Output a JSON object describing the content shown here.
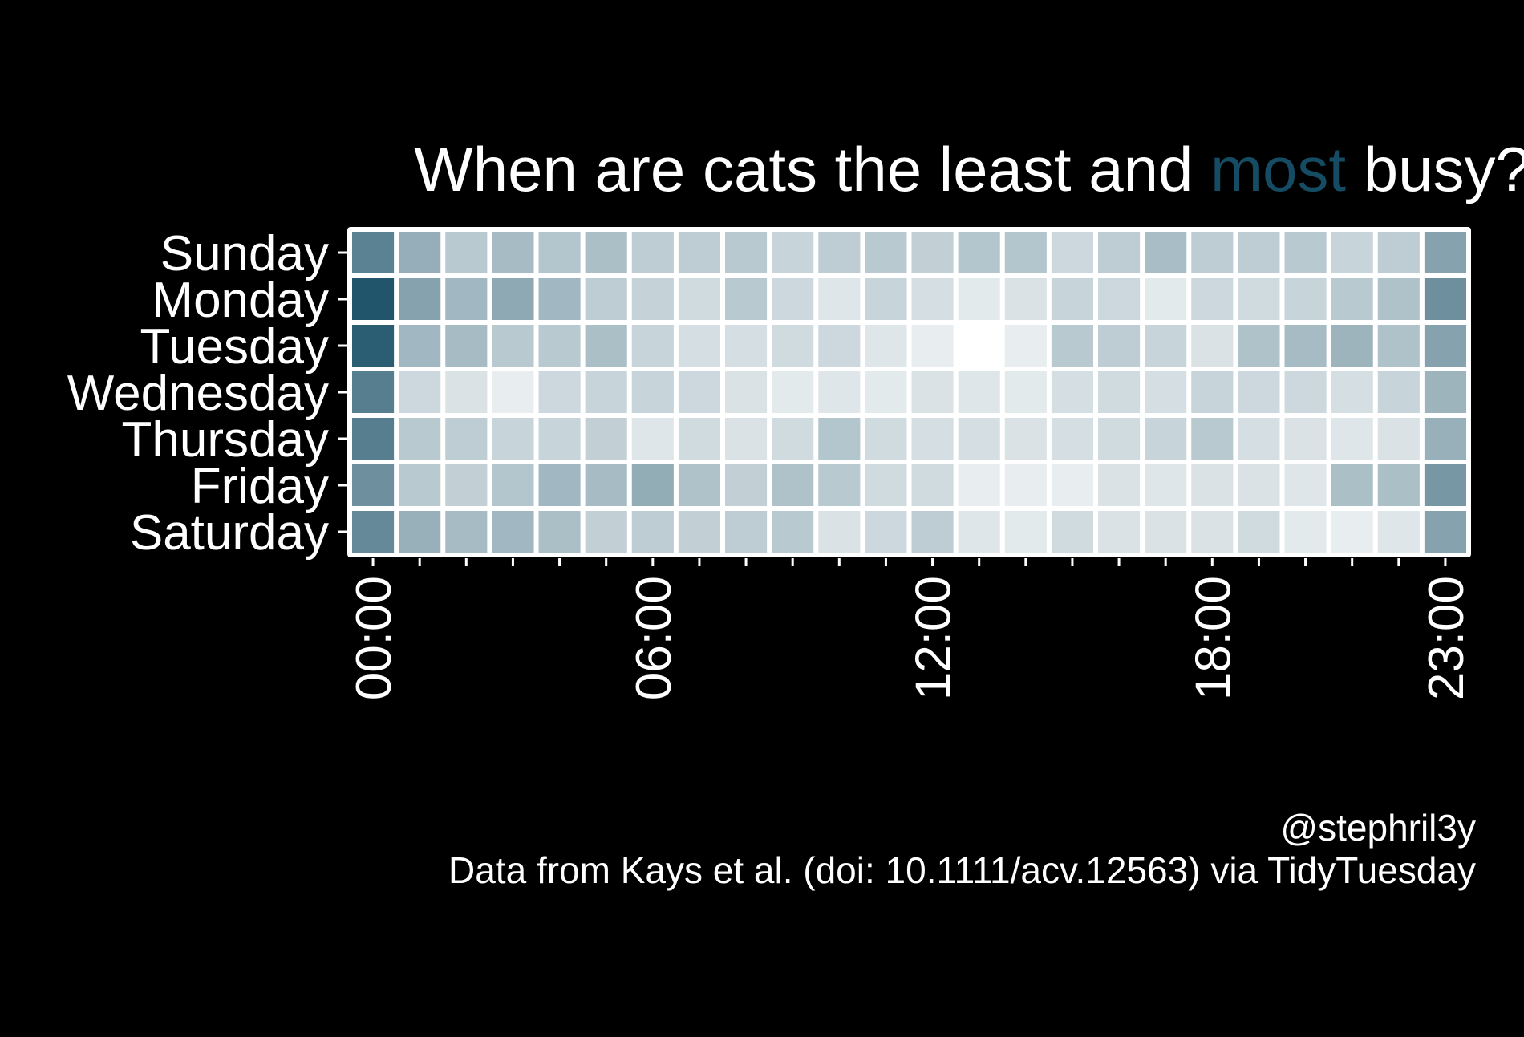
{
  "chart_data": {
    "type": "heatmap",
    "title": {
      "before": "When are cats the least and ",
      "highlight": "most",
      "after": " busy?"
    },
    "rows": [
      "Sunday",
      "Monday",
      "Tuesday",
      "Wednesday",
      "Thursday",
      "Friday",
      "Saturday"
    ],
    "columns": [
      "00:00",
      "01:00",
      "02:00",
      "03:00",
      "04:00",
      "05:00",
      "06:00",
      "07:00",
      "08:00",
      "09:00",
      "10:00",
      "11:00",
      "12:00",
      "13:00",
      "14:00",
      "15:00",
      "16:00",
      "17:00",
      "18:00",
      "19:00",
      "20:00",
      "21:00",
      "22:00",
      "23:00"
    ],
    "x_tick_labels": [
      "00:00",
      "06:00",
      "12:00",
      "18:00",
      "23:00"
    ],
    "x_tick_hours": [
      0,
      6,
      12,
      18,
      23
    ],
    "values": [
      [
        0.7,
        0.45,
        0.3,
        0.38,
        0.32,
        0.36,
        0.28,
        0.28,
        0.3,
        0.24,
        0.28,
        0.3,
        0.26,
        0.32,
        0.32,
        0.22,
        0.28,
        0.37,
        0.28,
        0.28,
        0.3,
        0.24,
        0.28,
        0.52
      ],
      [
        0.95,
        0.52,
        0.4,
        0.48,
        0.4,
        0.28,
        0.25,
        0.2,
        0.3,
        0.22,
        0.14,
        0.24,
        0.18,
        0.12,
        0.16,
        0.24,
        0.22,
        0.12,
        0.22,
        0.2,
        0.24,
        0.3,
        0.34,
        0.62
      ],
      [
        0.9,
        0.4,
        0.38,
        0.3,
        0.3,
        0.36,
        0.24,
        0.18,
        0.18,
        0.2,
        0.22,
        0.14,
        0.1,
        0.0,
        0.1,
        0.3,
        0.28,
        0.24,
        0.16,
        0.34,
        0.38,
        0.42,
        0.34,
        0.52
      ],
      [
        0.72,
        0.22,
        0.16,
        0.1,
        0.22,
        0.24,
        0.24,
        0.22,
        0.16,
        0.12,
        0.14,
        0.12,
        0.16,
        0.14,
        0.12,
        0.18,
        0.2,
        0.18,
        0.24,
        0.22,
        0.22,
        0.18,
        0.24,
        0.42
      ],
      [
        0.72,
        0.3,
        0.28,
        0.24,
        0.24,
        0.26,
        0.14,
        0.2,
        0.16,
        0.2,
        0.32,
        0.2,
        0.18,
        0.18,
        0.16,
        0.18,
        0.2,
        0.24,
        0.3,
        0.18,
        0.16,
        0.14,
        0.16,
        0.44
      ],
      [
        0.62,
        0.3,
        0.26,
        0.32,
        0.4,
        0.38,
        0.46,
        0.34,
        0.26,
        0.34,
        0.3,
        0.2,
        0.2,
        0.1,
        0.1,
        0.1,
        0.16,
        0.14,
        0.16,
        0.16,
        0.14,
        0.36,
        0.36,
        0.58
      ],
      [
        0.66,
        0.44,
        0.38,
        0.4,
        0.36,
        0.26,
        0.28,
        0.26,
        0.28,
        0.3,
        0.16,
        0.22,
        0.28,
        0.14,
        0.12,
        0.2,
        0.16,
        0.16,
        0.16,
        0.2,
        0.12,
        0.1,
        0.14,
        0.52
      ]
    ],
    "value_scale": "relative activity (0 = least, 1 = most)",
    "low_color": "#ffffff",
    "high_color": "#154c63",
    "tile_border_color": "#ffffff",
    "background": "#000000",
    "grid": false,
    "legend": "none"
  },
  "caption": {
    "handle": "@stephril3y",
    "source": "Data from Kays et al. (doi: 10.1111/acv.12563) via TidyTuesday"
  }
}
